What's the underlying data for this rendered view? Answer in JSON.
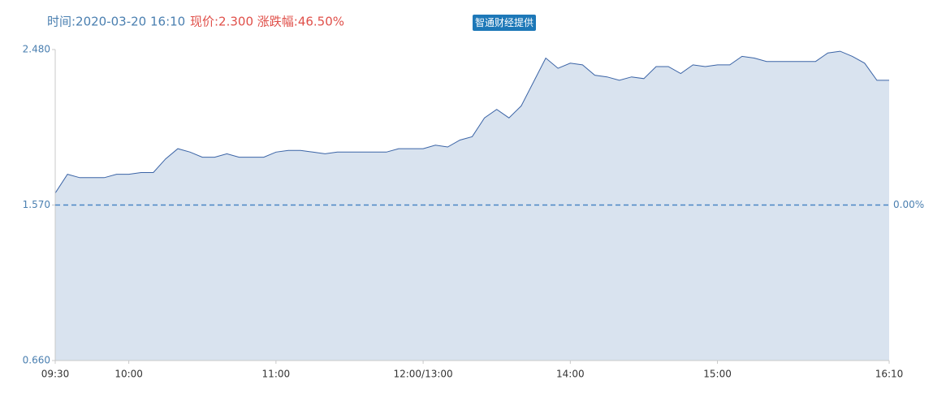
{
  "chart_data": {
    "type": "area",
    "title": "时间:2020-03-20 16:10",
    "subtitle": "现价:2.300 涨跌幅:46.50%",
    "annotation": "智通财经提供",
    "color": "#3b64a6",
    "fill": "#d9e3ef",
    "x": [
      0,
      5,
      10,
      15,
      20,
      25,
      30,
      35,
      40,
      45,
      50,
      55,
      60,
      65,
      70,
      75,
      80,
      85,
      90,
      95,
      100,
      105,
      110,
      115,
      120,
      125,
      130,
      135,
      140,
      145,
      150,
      155,
      160,
      165,
      170,
      175,
      180,
      185,
      190,
      195,
      200,
      205,
      210,
      215,
      220,
      225,
      230,
      235,
      240,
      245,
      250,
      255,
      260,
      265,
      270,
      275,
      280,
      285,
      290,
      295,
      300,
      305,
      310,
      315,
      320,
      325,
      330,
      335,
      340
    ],
    "values": [
      1.64,
      1.75,
      1.73,
      1.73,
      1.73,
      1.75,
      1.75,
      1.76,
      1.76,
      1.84,
      1.9,
      1.88,
      1.85,
      1.85,
      1.87,
      1.85,
      1.85,
      1.85,
      1.88,
      1.89,
      1.89,
      1.88,
      1.87,
      1.88,
      1.88,
      1.88,
      1.88,
      1.88,
      1.9,
      1.9,
      1.9,
      1.92,
      1.91,
      1.95,
      1.97,
      2.08,
      2.13,
      2.08,
      2.15,
      2.29,
      2.43,
      2.37,
      2.4,
      2.39,
      2.33,
      2.32,
      2.3,
      2.32,
      2.31,
      2.38,
      2.38,
      2.34,
      2.39,
      2.38,
      2.39,
      2.39,
      2.44,
      2.43,
      2.41,
      2.41,
      2.41,
      2.41,
      2.41,
      2.46,
      2.47,
      2.44,
      2.4,
      2.3,
      2.3
    ],
    "xlim": [
      0,
      340
    ],
    "xticks": [
      {
        "value": 0,
        "label": "09:30"
      },
      {
        "value": 30,
        "label": "10:00"
      },
      {
        "value": 90,
        "label": "11:00"
      },
      {
        "value": 150,
        "label": "12:00/13:00"
      },
      {
        "value": 210,
        "label": "14:00"
      },
      {
        "value": 270,
        "label": "15:00"
      },
      {
        "value": 340,
        "label": "16:10"
      }
    ],
    "ylim": [
      0.66,
      2.48
    ],
    "yticks": [
      {
        "value": 0.66,
        "label": "0.660"
      },
      {
        "value": 1.57,
        "label": "1.570"
      },
      {
        "value": 2.48,
        "label": "2.480"
      }
    ],
    "y2lim": [
      -57.96,
      57.96
    ],
    "y2ticks": [
      {
        "value": 0,
        "label": "0.00%"
      }
    ]
  }
}
